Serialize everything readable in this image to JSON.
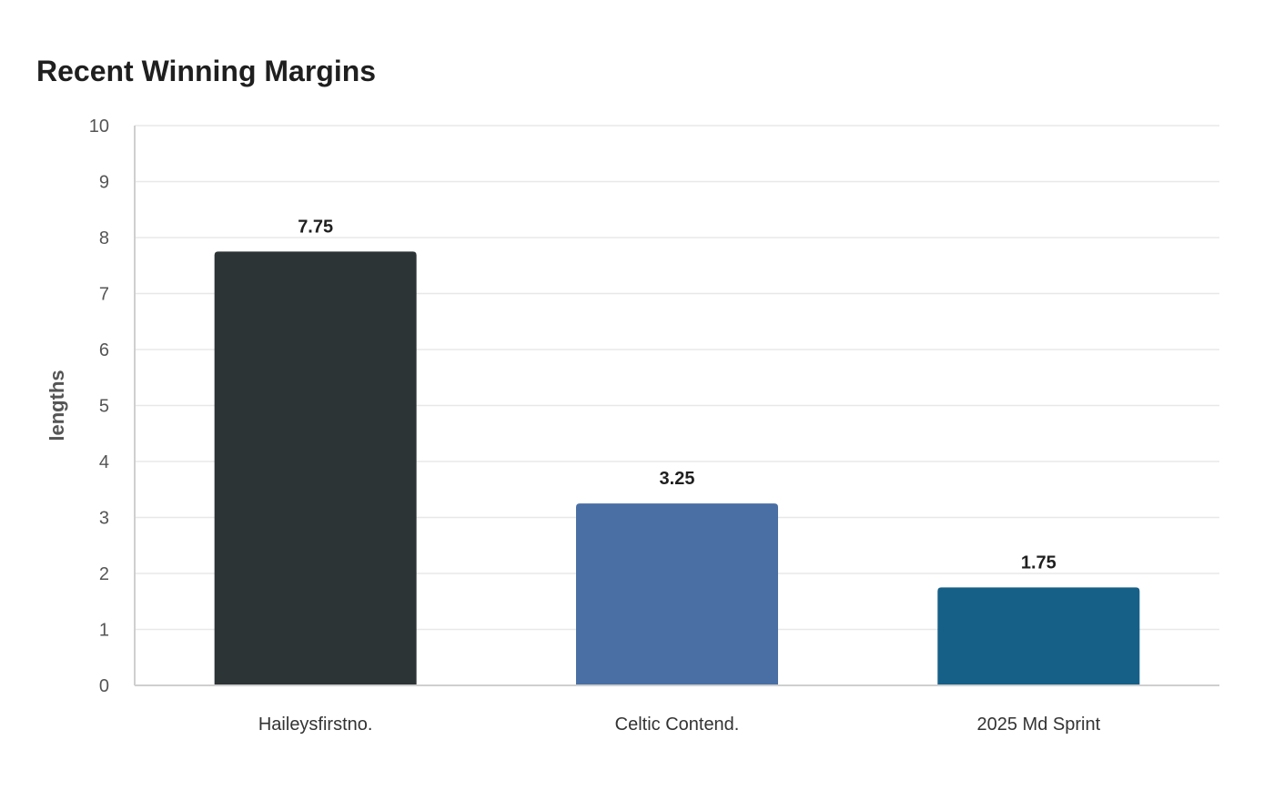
{
  "chart_data": {
    "type": "bar",
    "title": "Recent Winning Margins",
    "xlabel": "",
    "ylabel": "lengths",
    "categories": [
      "Haileysfirstno.",
      "Celtic Contend.",
      "2025 Md Sprint"
    ],
    "values": [
      7.75,
      3.25,
      1.75
    ],
    "data_labels": [
      "7.75",
      "3.25",
      "1.75"
    ],
    "colors": [
      "#2d3436",
      "#4a6fa5",
      "#166088"
    ],
    "ylim": [
      0,
      10
    ],
    "yticks": [
      0,
      1,
      2,
      3,
      4,
      5,
      6,
      7,
      8,
      9,
      10
    ],
    "grid": true,
    "legend": "none"
  }
}
